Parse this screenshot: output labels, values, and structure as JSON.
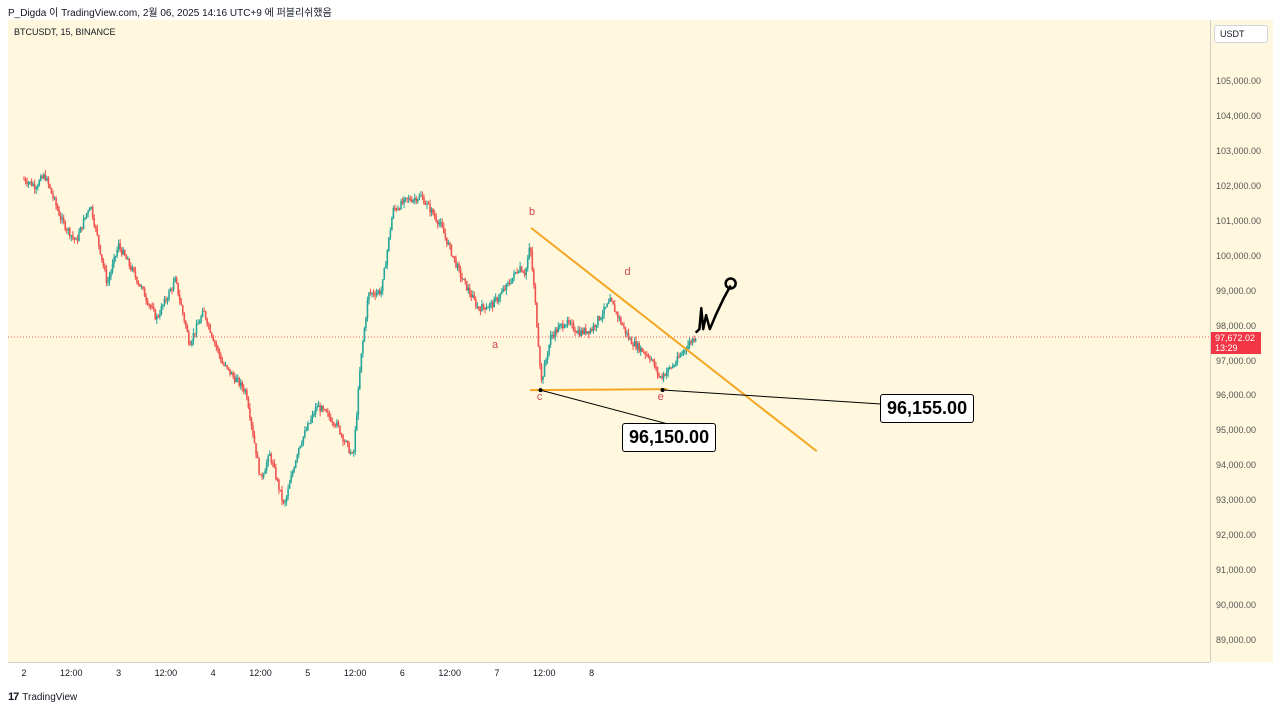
{
  "header": {
    "text": "P_Digda 이 TradingView.com, 2월 06, 2025 14:16 UTC+9 에 퍼블리쉬했음"
  },
  "symbol": "BTCUSDT, 15, BINANCE",
  "currency": "USDT",
  "current_price": {
    "value": "97,672.02",
    "countdown": "13:29"
  },
  "footer": {
    "logo": "17",
    "brand": "TradingView"
  },
  "callouts": {
    "c": "96,150.00",
    "e": "96,155.00"
  },
  "colors": {
    "up": "#26a69a",
    "down": "#ef5350",
    "trendline": "#f5a623",
    "background": "#fff8de",
    "price_line": "#f23645"
  },
  "chart_data": {
    "type": "candlestick",
    "title": "",
    "xlabel": "",
    "ylabel": "",
    "y_tick_labels": [
      "105,000.00",
      "104,000.00",
      "103,000.00",
      "102,000.00",
      "101,000.00",
      "100,000.00",
      "99,000.00",
      "98,000.00",
      "97,000.00",
      "96,000.00",
      "95,000.00",
      "94,000.00",
      "93,000.00",
      "92,000.00",
      "91,000.00",
      "90,000.00",
      "89,000.00"
    ],
    "x_tick_labels": [
      "2",
      "12:00",
      "3",
      "12:00",
      "4",
      "12:00",
      "5",
      "12:00",
      "6",
      "12:00",
      "7",
      "12:00",
      "8"
    ],
    "ylim": [
      88400,
      105600
    ],
    "price_path": [
      {
        "x": 0.0,
        "y": 102200
      },
      {
        "x": 0.12,
        "y": 102000
      },
      {
        "x": 0.22,
        "y": 102300
      },
      {
        "x": 0.4,
        "y": 101000
      },
      {
        "x": 0.55,
        "y": 100400
      },
      {
        "x": 0.7,
        "y": 101500
      },
      {
        "x": 0.88,
        "y": 99200
      },
      {
        "x": 1.0,
        "y": 100300
      },
      {
        "x": 1.2,
        "y": 99300
      },
      {
        "x": 1.4,
        "y": 98200
      },
      {
        "x": 1.6,
        "y": 99300
      },
      {
        "x": 1.75,
        "y": 97500
      },
      {
        "x": 1.9,
        "y": 98400
      },
      {
        "x": 2.1,
        "y": 96900
      },
      {
        "x": 2.35,
        "y": 96100
      },
      {
        "x": 2.5,
        "y": 93600
      },
      {
        "x": 2.6,
        "y": 94300
      },
      {
        "x": 2.75,
        "y": 92800
      },
      {
        "x": 2.9,
        "y": 94500
      },
      {
        "x": 3.1,
        "y": 95700
      },
      {
        "x": 3.3,
        "y": 95200
      },
      {
        "x": 3.48,
        "y": 94200
      },
      {
        "x": 3.56,
        "y": 97000
      },
      {
        "x": 3.64,
        "y": 98900
      },
      {
        "x": 3.78,
        "y": 99000
      },
      {
        "x": 3.9,
        "y": 101300
      },
      {
        "x": 4.05,
        "y": 101600
      },
      {
        "x": 4.2,
        "y": 101700
      },
      {
        "x": 4.4,
        "y": 100900
      },
      {
        "x": 4.62,
        "y": 99400
      },
      {
        "x": 4.8,
        "y": 98500
      },
      {
        "x": 4.95,
        "y": 98600
      },
      {
        "x": 5.1,
        "y": 99100
      },
      {
        "x": 5.24,
        "y": 99700
      },
      {
        "x": 5.3,
        "y": 99500
      },
      {
        "x": 5.35,
        "y": 100300
      },
      {
        "x": 5.4,
        "y": 98800
      },
      {
        "x": 5.47,
        "y": 96400
      },
      {
        "x": 5.57,
        "y": 97700
      },
      {
        "x": 5.72,
        "y": 98100
      },
      {
        "x": 5.88,
        "y": 97800
      },
      {
        "x": 6.0,
        "y": 97900
      },
      {
        "x": 6.2,
        "y": 98700
      },
      {
        "x": 6.4,
        "y": 97600
      },
      {
        "x": 6.62,
        "y": 97100
      },
      {
        "x": 6.72,
        "y": 96500
      },
      {
        "x": 6.88,
        "y": 96900
      },
      {
        "x": 7.0,
        "y": 97400
      },
      {
        "x": 7.1,
        "y": 97700
      }
    ],
    "wave_labels": [
      {
        "label": "a",
        "x": 4.98,
        "y": 97450
      },
      {
        "label": "b",
        "x": 5.37,
        "y": 101250
      },
      {
        "label": "c",
        "x": 5.45,
        "y": 95950
      },
      {
        "label": "d",
        "x": 6.38,
        "y": 99550
      },
      {
        "label": "e",
        "x": 6.73,
        "y": 95950
      }
    ],
    "support_line": {
      "x1": 5.35,
      "y1": 96150,
      "x2": 6.8,
      "y2": 96180
    },
    "resistance_line": {
      "x1": 5.36,
      "y1": 100800,
      "x2": 8.38,
      "y2": 94400
    },
    "projection": [
      {
        "x": 7.1,
        "y": 97800
      },
      {
        "x": 7.14,
        "y": 97900
      },
      {
        "x": 7.16,
        "y": 98500
      },
      {
        "x": 7.18,
        "y": 97900
      },
      {
        "x": 7.21,
        "y": 98300
      },
      {
        "x": 7.25,
        "y": 97900
      },
      {
        "x": 7.32,
        "y": 98350
      },
      {
        "x": 7.4,
        "y": 98800
      },
      {
        "x": 7.47,
        "y": 99150
      }
    ]
  }
}
